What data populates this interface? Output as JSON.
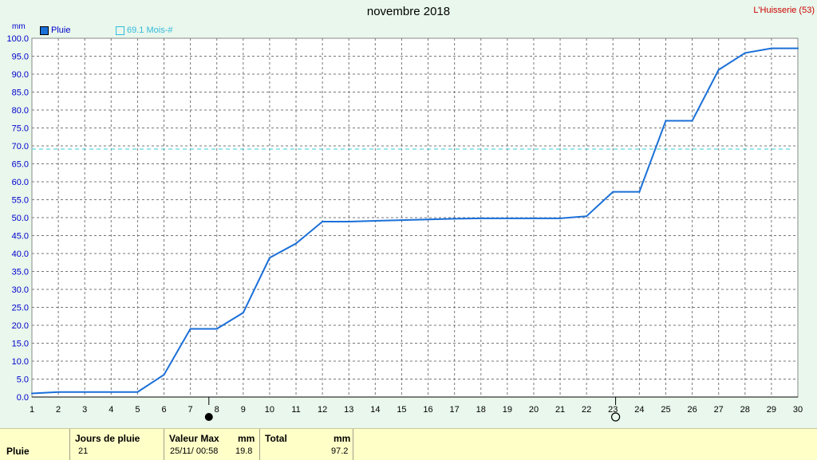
{
  "header": {
    "title": "novembre 2018",
    "station": "L'Huisserie (53)",
    "unit": "mm",
    "legend_series": "Pluie",
    "legend_reference": "69.1 Mois-#"
  },
  "colors": {
    "series": "#1a6fd8",
    "reference": "#33ccdd",
    "background": "#e9f7ec",
    "table_bg": "#ffffc8"
  },
  "chart_data": {
    "type": "line",
    "title": "novembre 2018",
    "xlabel": "",
    "ylabel": "mm",
    "xlim": [
      1,
      30
    ],
    "ylim": [
      0,
      100
    ],
    "grid": true,
    "legend_position": "top-left",
    "x_ticks": [
      1,
      2,
      3,
      4,
      5,
      6,
      7,
      8,
      9,
      10,
      11,
      12,
      13,
      14,
      15,
      16,
      17,
      18,
      19,
      20,
      21,
      22,
      23,
      24,
      25,
      26,
      27,
      28,
      29,
      30
    ],
    "y_ticks": [
      "0.0",
      "5.0",
      "10.0",
      "15.0",
      "20.0",
      "25.0",
      "30.0",
      "35.0",
      "40.0",
      "45.0",
      "50.0",
      "55.0",
      "60.0",
      "65.0",
      "70.0",
      "75.0",
      "80.0",
      "85.0",
      "90.0",
      "95.0",
      "100.0"
    ],
    "series": [
      {
        "name": "Pluie",
        "x": [
          1,
          2,
          3,
          4,
          5,
          6,
          7,
          8,
          9,
          10,
          11,
          12,
          13,
          14,
          15,
          16,
          17,
          18,
          19,
          20,
          21,
          22,
          23,
          24,
          25,
          26,
          27,
          28,
          29,
          30
        ],
        "values": [
          1.0,
          1.4,
          1.4,
          1.4,
          1.4,
          6.2,
          19.0,
          19.0,
          23.5,
          38.8,
          42.8,
          48.9,
          48.9,
          49.1,
          49.3,
          49.5,
          49.7,
          49.8,
          49.8,
          49.8,
          49.8,
          50.4,
          57.2,
          57.2,
          77.0,
          77.0,
          91.2,
          95.9,
          97.2,
          97.2
        ]
      }
    ],
    "reference_line": {
      "label": "69.1 Mois-#",
      "value": 69.1
    },
    "moon_phases": [
      {
        "day": 7.7,
        "phase": "new-moon"
      },
      {
        "day": 23.1,
        "phase": "full-moon"
      }
    ]
  },
  "table": {
    "row_label": "Pluie",
    "col_jours_header": "Jours de pluie",
    "col_jours_value": "21",
    "col_valmax_header": "Valeur Max",
    "col_valmax_unit": "mm",
    "col_valmax_date": "25/11/  00:58",
    "col_valmax_value": "19.8",
    "col_total_header": "Total",
    "col_total_unit": "mm",
    "col_total_value": "97.2"
  }
}
